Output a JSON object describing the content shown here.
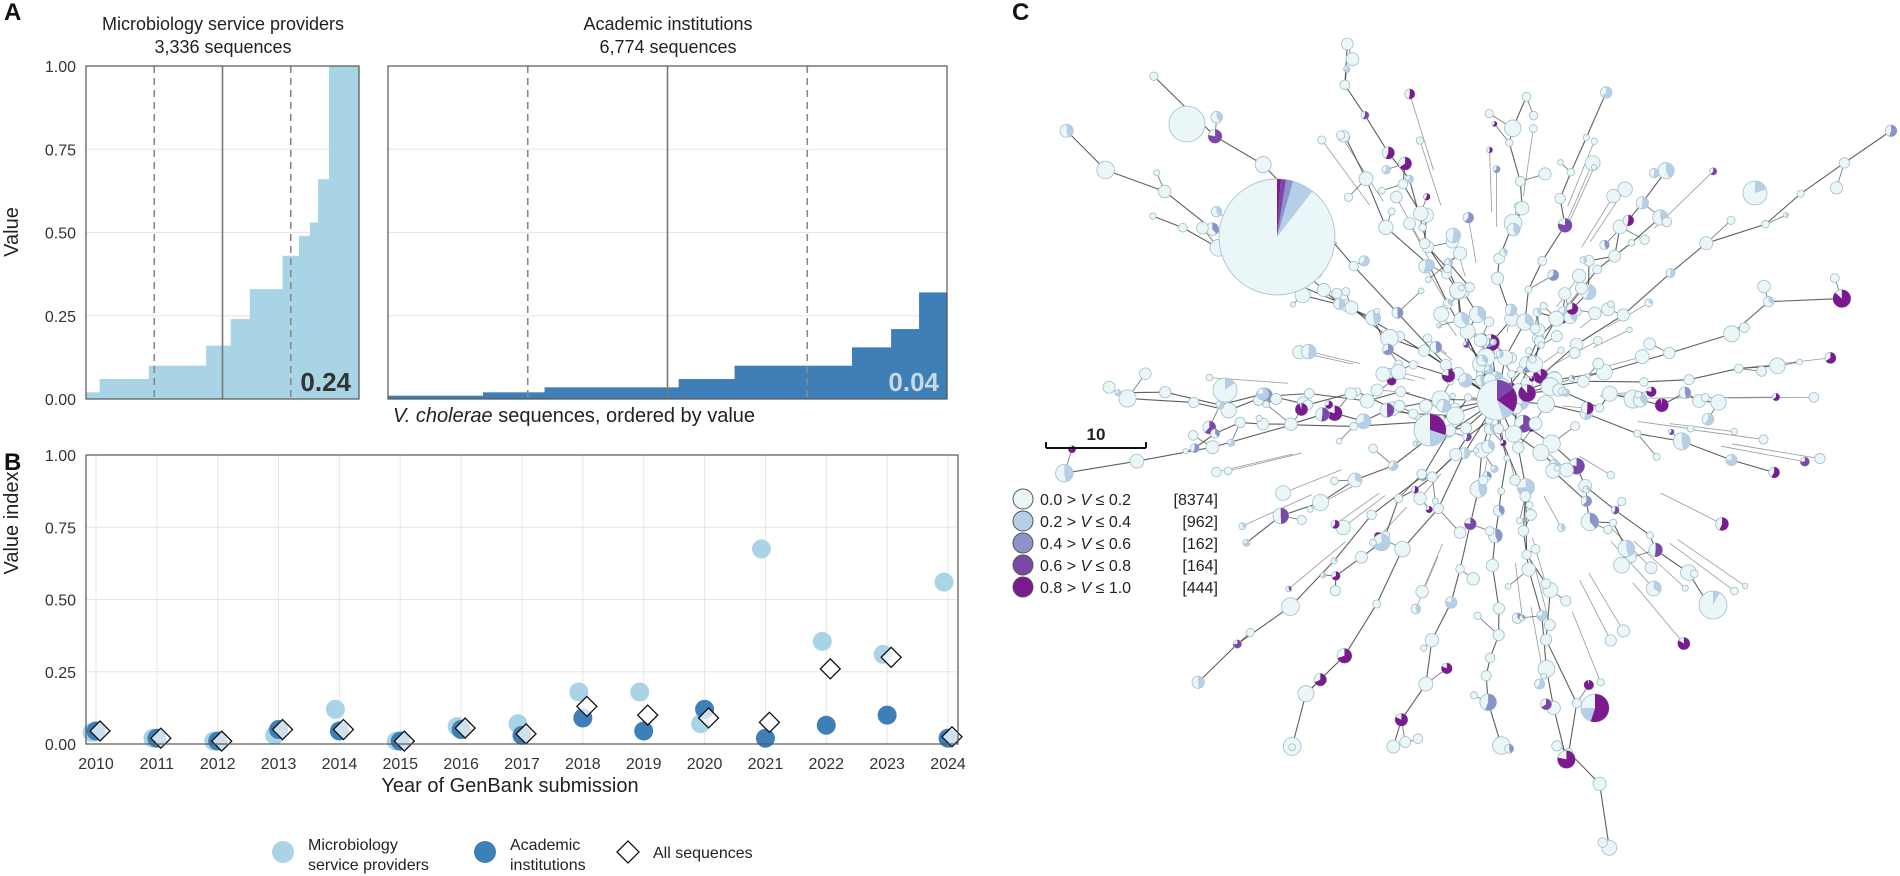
{
  "panel_labels": {
    "a": "A",
    "b": "B",
    "c": "C"
  },
  "colors": {
    "light_blue": "#a8d4e6",
    "dark_blue": "#3d7fb6",
    "median_line": "#777777",
    "quartile_line": "#888888",
    "node_bins": [
      "#eaf6f8",
      "#b7cfe6",
      "#8b93c8",
      "#7b47a8",
      "#7a1a8e"
    ]
  },
  "chart_data": [
    {
      "id": "panel-a",
      "type": "area",
      "ylabel": "Value",
      "xlabel_italic": "V. cholerae",
      "xlabel_rest": " sequences, ordered by value",
      "ylim": [
        0,
        1
      ],
      "yticks": [
        "0.00",
        "0.25",
        "0.50",
        "0.75",
        "1.00"
      ],
      "facets": [
        {
          "name": "Microbiology service providers",
          "subtitle": "3,336 sequences",
          "annotation": "0.24",
          "steps": [
            {
              "frac": 0.05,
              "value": 0.02
            },
            {
              "frac": 0.23,
              "value": 0.06
            },
            {
              "frac": 0.44,
              "value": 0.1
            },
            {
              "frac": 0.53,
              "value": 0.16
            },
            {
              "frac": 0.6,
              "value": 0.24
            },
            {
              "frac": 0.72,
              "value": 0.33
            },
            {
              "frac": 0.78,
              "value": 0.43
            },
            {
              "frac": 0.82,
              "value": 0.49
            },
            {
              "frac": 0.85,
              "value": 0.53
            },
            {
              "frac": 0.89,
              "value": 0.66
            },
            {
              "frac": 1.0,
              "value": 1.0
            }
          ],
          "quartiles": [
            0.25,
            0.5,
            0.75
          ]
        },
        {
          "name": "Academic institutions",
          "subtitle": "6,774 sequences",
          "annotation": "0.04",
          "steps": [
            {
              "frac": 0.17,
              "value": 0.01
            },
            {
              "frac": 0.28,
              "value": 0.02
            },
            {
              "frac": 0.52,
              "value": 0.035
            },
            {
              "frac": 0.62,
              "value": 0.06
            },
            {
              "frac": 0.83,
              "value": 0.1
            },
            {
              "frac": 0.9,
              "value": 0.155
            },
            {
              "frac": 0.95,
              "value": 0.21
            },
            {
              "frac": 1.0,
              "value": 0.32
            }
          ],
          "quartiles": [
            0.25,
            0.5,
            0.75
          ]
        }
      ]
    },
    {
      "id": "panel-b",
      "type": "scatter",
      "xlabel": "Year of GenBank submission",
      "ylabel": "Value index",
      "ylim": [
        0,
        1
      ],
      "yticks": [
        "0.00",
        "0.25",
        "0.50",
        "0.75",
        "1.00"
      ],
      "categories": [
        "2010",
        "2011",
        "2012",
        "2013",
        "2014",
        "2015",
        "2016",
        "2017",
        "2018",
        "2019",
        "2020",
        "2021",
        "2022",
        "2023",
        "2024"
      ],
      "series": [
        {
          "name": "Microbiology\nservice providers",
          "marker": "circle",
          "values": [
            0.04,
            0.02,
            0.01,
            0.03,
            0.12,
            0.01,
            0.06,
            0.07,
            0.18,
            0.18,
            0.07,
            0.675,
            0.355,
            0.31,
            0.56
          ]
        },
        {
          "name": "Academic\ninstitutions",
          "marker": "circle",
          "values": [
            0.045,
            0.02,
            0.01,
            0.05,
            0.045,
            0.01,
            0.05,
            0.03,
            0.09,
            0.045,
            0.12,
            0.02,
            0.065,
            0.1,
            0.02
          ]
        },
        {
          "name": "All sequences",
          "marker": "diamond",
          "values": [
            0.045,
            0.02,
            0.01,
            0.05,
            0.05,
            0.01,
            0.055,
            0.035,
            0.13,
            0.1,
            0.09,
            0.075,
            0.26,
            0.3,
            0.025
          ]
        }
      ],
      "legend_position": "bottom"
    },
    {
      "id": "panel-c",
      "type": "network",
      "scale_label": "10",
      "legend": [
        {
          "pre": "0.0 > ",
          "var": "V",
          "post": " ≤ 0.2",
          "count": "[8374]"
        },
        {
          "pre": "0.2 > ",
          "var": "V",
          "post": " ≤ 0.4",
          "count": "[962]"
        },
        {
          "pre": "0.4 > ",
          "var": "V",
          "post": " ≤ 0.6",
          "count": "[162]"
        },
        {
          "pre": "0.6 > ",
          "var": "V",
          "post": " ≤ 0.8",
          "count": "[164]"
        },
        {
          "pre": "0.8 > ",
          "var": "V",
          "post": " ≤ 1.0",
          "count": "[444]"
        }
      ]
    }
  ]
}
